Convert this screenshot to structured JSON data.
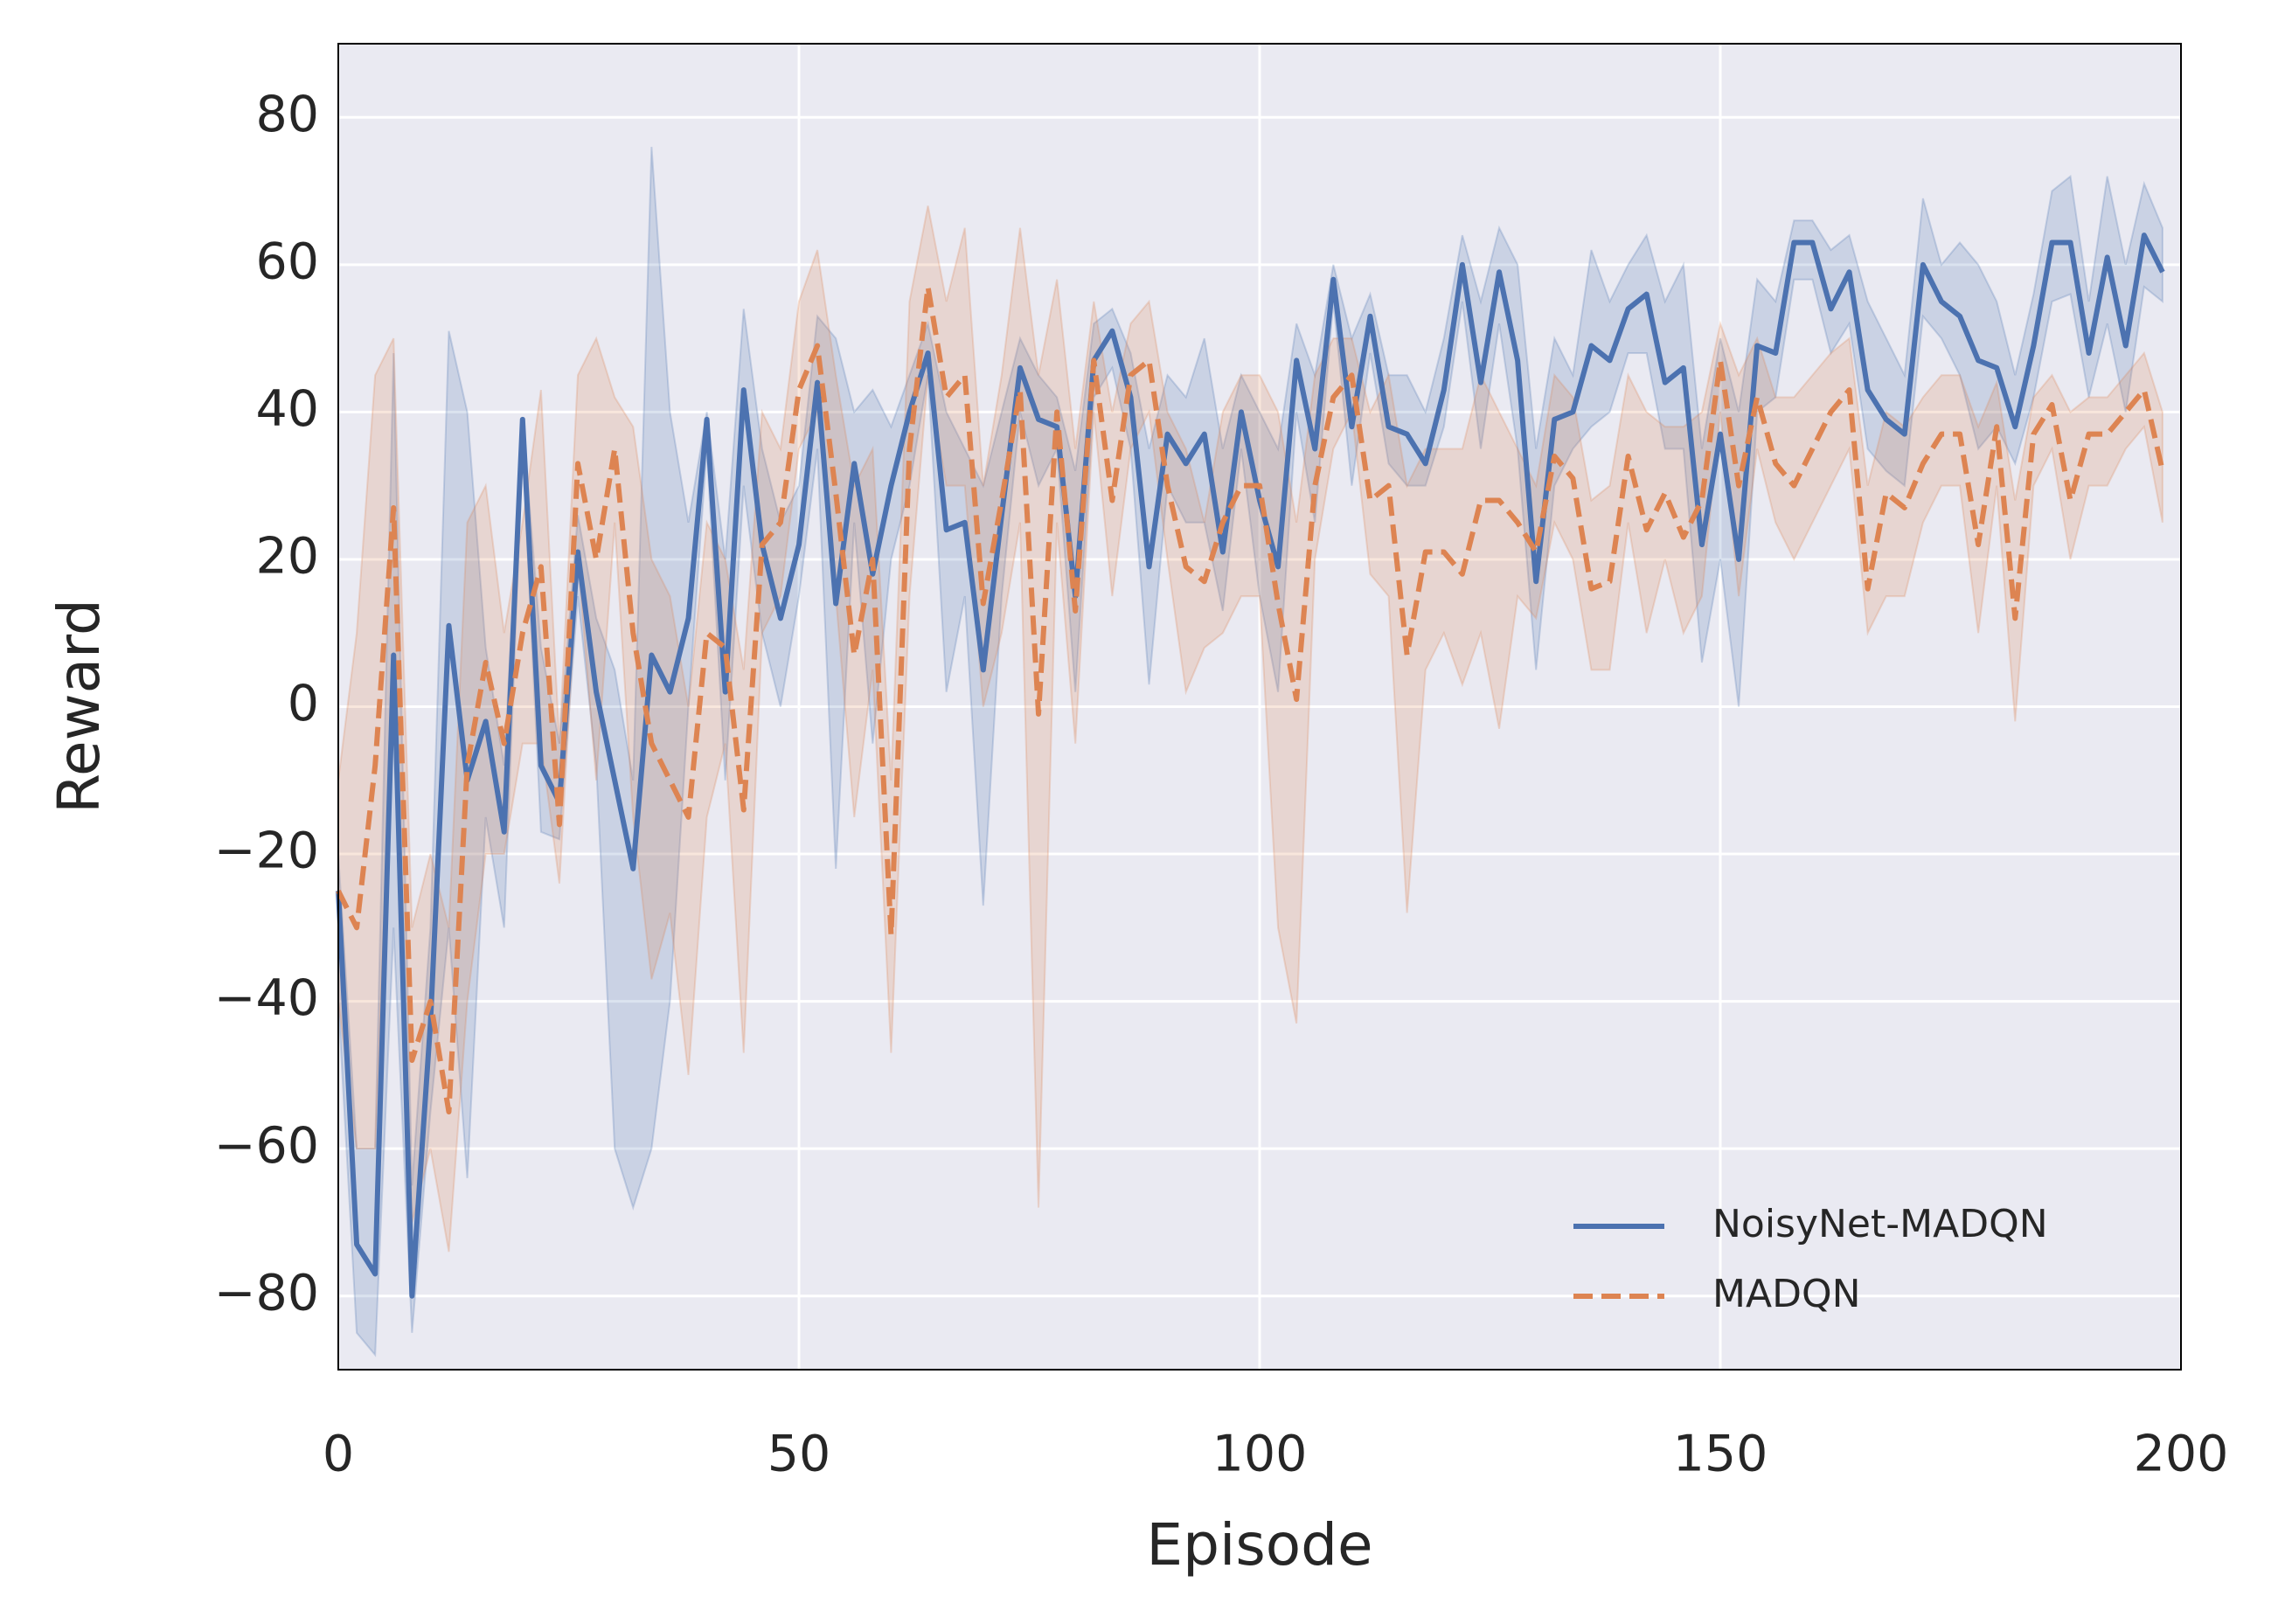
{
  "chart_data": {
    "type": "line",
    "xlabel": "Episode",
    "ylabel": "Reward",
    "x": [
      0,
      2,
      4,
      6,
      8,
      10,
      12,
      14,
      16,
      18,
      20,
      22,
      24,
      26,
      28,
      30,
      32,
      34,
      36,
      38,
      40,
      42,
      44,
      46,
      48,
      50,
      52,
      54,
      56,
      58,
      60,
      62,
      64,
      66,
      68,
      70,
      72,
      74,
      76,
      78,
      80,
      82,
      84,
      86,
      88,
      90,
      92,
      94,
      96,
      98,
      100,
      102,
      104,
      106,
      108,
      110,
      112,
      114,
      116,
      118,
      120,
      122,
      124,
      126,
      128,
      130,
      132,
      134,
      136,
      138,
      140,
      142,
      144,
      146,
      148,
      150,
      152,
      154,
      156,
      158,
      160,
      162,
      164,
      166,
      168,
      170,
      172,
      174,
      176,
      178,
      180,
      182,
      184,
      186,
      188,
      190,
      192,
      194,
      196,
      198
    ],
    "xlim": [
      0,
      200
    ],
    "xticks": [
      0,
      50,
      100,
      150,
      200
    ],
    "ylim": [
      -90,
      90
    ],
    "yticks": [
      -80,
      -60,
      -40,
      -20,
      0,
      20,
      40,
      60,
      80
    ],
    "grid": true,
    "legend": "lower right",
    "series": [
      {
        "name": "NoisyNet-MADQN",
        "color": "#4c72b0",
        "linestyle": "solid",
        "values": [
          -25,
          -73,
          -77,
          7,
          -80,
          -43,
          11,
          -10,
          -2,
          -17,
          39,
          -8,
          -13,
          21,
          2,
          -10,
          -22,
          7,
          2,
          12,
          39,
          2,
          43,
          22,
          12,
          22,
          44,
          14,
          33,
          18,
          30,
          40,
          48,
          24,
          25,
          5,
          26,
          46,
          39,
          38,
          15,
          47,
          51,
          42,
          19,
          37,
          33,
          37,
          21,
          40,
          28,
          19,
          47,
          35,
          58,
          38,
          53,
          38,
          37,
          33,
          43,
          60,
          44,
          59,
          47,
          17,
          39,
          40,
          49,
          47,
          54,
          56,
          44,
          46,
          22,
          37,
          20,
          49,
          48,
          63,
          63,
          54,
          59,
          43,
          39,
          37,
          60,
          55,
          53,
          47,
          46,
          38,
          49,
          63,
          63,
          48,
          61,
          49,
          64,
          59
        ],
        "upper": [
          -20,
          -60,
          -60,
          48,
          -65,
          -30,
          51,
          40,
          8,
          -8,
          39,
          8,
          -5,
          26,
          12,
          5,
          -10,
          76,
          40,
          25,
          40,
          20,
          54,
          35,
          25,
          30,
          53,
          50,
          40,
          43,
          38,
          45,
          52,
          40,
          35,
          30,
          40,
          50,
          45,
          42,
          32,
          52,
          54,
          48,
          35,
          45,
          42,
          50,
          35,
          45,
          40,
          35,
          52,
          45,
          60,
          50,
          56,
          45,
          45,
          40,
          50,
          64,
          55,
          65,
          60,
          35,
          50,
          45,
          62,
          55,
          60,
          64,
          55,
          60,
          35,
          50,
          40,
          58,
          55,
          66,
          66,
          62,
          64,
          55,
          50,
          45,
          69,
          60,
          63,
          60,
          55,
          45,
          56,
          70,
          72,
          55,
          72,
          60,
          71,
          65
        ],
        "lower": [
          -40,
          -85,
          -88,
          -30,
          -85,
          -55,
          -30,
          -64,
          -15,
          -30,
          35,
          -17,
          -18,
          15,
          -8,
          -60,
          -68,
          -60,
          -40,
          0,
          35,
          -10,
          30,
          10,
          0,
          15,
          35,
          -22,
          25,
          -5,
          20,
          30,
          45,
          2,
          15,
          -27,
          15,
          40,
          30,
          35,
          2,
          42,
          46,
          35,
          3,
          30,
          25,
          25,
          13,
          35,
          15,
          2,
          40,
          25,
          55,
          30,
          48,
          33,
          30,
          30,
          38,
          55,
          35,
          52,
          35,
          5,
          30,
          35,
          38,
          40,
          48,
          48,
          35,
          35,
          6,
          20,
          0,
          40,
          42,
          58,
          58,
          48,
          52,
          35,
          32,
          30,
          53,
          50,
          45,
          35,
          38,
          33,
          42,
          55,
          56,
          42,
          52,
          40,
          57,
          55
        ]
      },
      {
        "name": "MADQN",
        "color": "#dd8452",
        "linestyle": "dashed",
        "values": [
          -25,
          -30,
          -8,
          27,
          -48,
          -40,
          -55,
          -8,
          6,
          -5,
          10,
          19,
          -16,
          33,
          20,
          35,
          10,
          -5,
          -10,
          -15,
          10,
          8,
          -14,
          22,
          25,
          43,
          49,
          29,
          7,
          20,
          -31,
          35,
          57,
          42,
          45,
          14,
          28,
          43,
          -1,
          40,
          13,
          47,
          28,
          45,
          47,
          30,
          19,
          17,
          25,
          30,
          30,
          14,
          1,
          30,
          42,
          45,
          28,
          30,
          7,
          21,
          21,
          18,
          28,
          28,
          25,
          21,
          34,
          31,
          16,
          17,
          34,
          24,
          29,
          23,
          28,
          47,
          30,
          42,
          33,
          30,
          35,
          40,
          43,
          16,
          29,
          27,
          33,
          37,
          37,
          22,
          38,
          12,
          37,
          41,
          28,
          37,
          37,
          40,
          43,
          32
        ],
        "upper": [
          -10,
          10,
          45,
          50,
          -30,
          -20,
          -30,
          25,
          30,
          10,
          25,
          43,
          -5,
          45,
          50,
          42,
          38,
          20,
          15,
          0,
          25,
          20,
          5,
          40,
          35,
          55,
          62,
          45,
          30,
          35,
          -10,
          55,
          68,
          55,
          65,
          30,
          45,
          65,
          45,
          58,
          35,
          55,
          40,
          52,
          55,
          40,
          35,
          25,
          40,
          45,
          45,
          40,
          25,
          45,
          50,
          50,
          40,
          45,
          30,
          35,
          35,
          35,
          45,
          40,
          35,
          30,
          45,
          42,
          28,
          30,
          45,
          40,
          38,
          38,
          40,
          52,
          45,
          50,
          42,
          42,
          45,
          48,
          50,
          30,
          40,
          38,
          42,
          45,
          45,
          38,
          44,
          28,
          42,
          45,
          40,
          42,
          42,
          45,
          48,
          40
        ],
        "lower": [
          -40,
          -60,
          -60,
          5,
          -70,
          -60,
          -74,
          -40,
          -20,
          -20,
          -5,
          -5,
          -24,
          20,
          -10,
          25,
          -15,
          -37,
          -28,
          -50,
          -15,
          -5,
          -47,
          10,
          15,
          35,
          40,
          15,
          -15,
          5,
          -47,
          15,
          45,
          30,
          30,
          0,
          10,
          25,
          -68,
          25,
          -5,
          40,
          15,
          35,
          40,
          20,
          2,
          8,
          10,
          15,
          15,
          -30,
          -43,
          20,
          35,
          40,
          18,
          15,
          -28,
          5,
          10,
          3,
          10,
          -3,
          15,
          12,
          25,
          20,
          5,
          5,
          25,
          10,
          20,
          10,
          15,
          40,
          15,
          35,
          25,
          20,
          25,
          30,
          35,
          10,
          15,
          15,
          25,
          30,
          30,
          10,
          30,
          -2,
          30,
          35,
          20,
          30,
          30,
          35,
          38,
          25
        ]
      }
    ]
  }
}
